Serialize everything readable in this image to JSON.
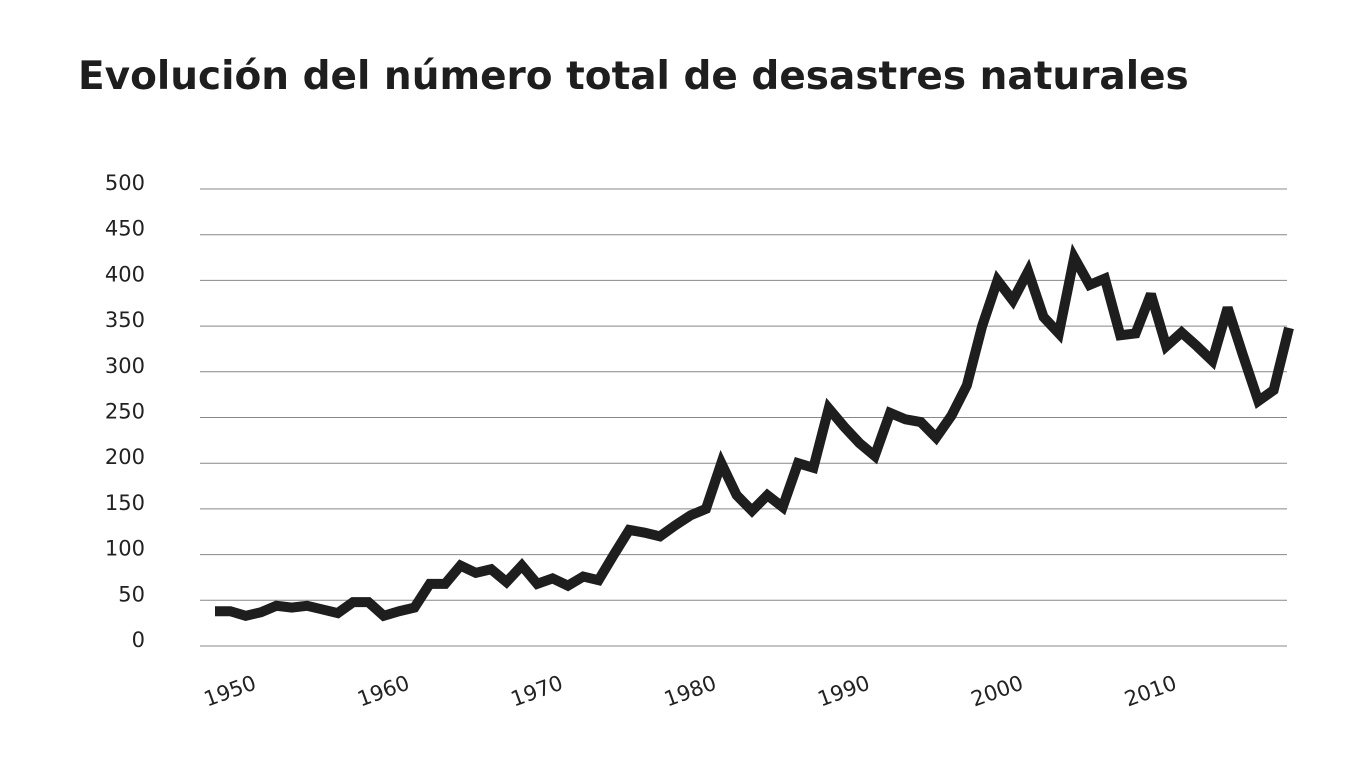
{
  "chart_data": {
    "type": "line",
    "title": "Evolución del número total de desastres naturales",
    "x": [
      1949,
      1950,
      1951,
      1952,
      1953,
      1954,
      1955,
      1956,
      1957,
      1958,
      1959,
      1960,
      1961,
      1962,
      1963,
      1964,
      1965,
      1966,
      1967,
      1968,
      1969,
      1970,
      1971,
      1972,
      1973,
      1974,
      1975,
      1976,
      1977,
      1978,
      1979,
      1980,
      1981,
      1982,
      1983,
      1984,
      1985,
      1986,
      1987,
      1988,
      1989,
      1990,
      1991,
      1992,
      1993,
      1994,
      1995,
      1996,
      1997,
      1998,
      1999,
      2000,
      2001,
      2002,
      2003,
      2004,
      2005,
      2006,
      2007,
      2008,
      2009,
      2010,
      2011,
      2012,
      2013,
      2014,
      2015,
      2016,
      2017,
      2018,
      2019
    ],
    "series": [
      {
        "name": "Desastres naturales",
        "color": "#1e1e1e",
        "values": [
          38,
          38,
          33,
          37,
          44,
          42,
          44,
          40,
          36,
          48,
          48,
          33,
          38,
          42,
          68,
          68,
          88,
          80,
          84,
          70,
          88,
          68,
          74,
          66,
          76,
          72,
          100,
          127,
          124,
          120,
          132,
          143,
          150,
          200,
          165,
          148,
          165,
          152,
          200,
          195,
          260,
          240,
          222,
          208,
          255,
          248,
          245,
          228,
          252,
          285,
          350,
          400,
          378,
          410,
          360,
          342,
          425,
          395,
          402,
          340,
          342,
          385,
          328,
          343,
          328,
          312,
          370,
          318,
          268,
          280,
          348
        ]
      }
    ],
    "xlim": [
      1949,
      2019
    ],
    "xticks": [
      1950,
      1960,
      1970,
      1980,
      1990,
      2000,
      2010
    ],
    "ylim": [
      0,
      500
    ],
    "yticks": [
      0,
      50,
      100,
      150,
      200,
      250,
      300,
      350,
      400,
      450,
      500
    ],
    "grid": true
  }
}
